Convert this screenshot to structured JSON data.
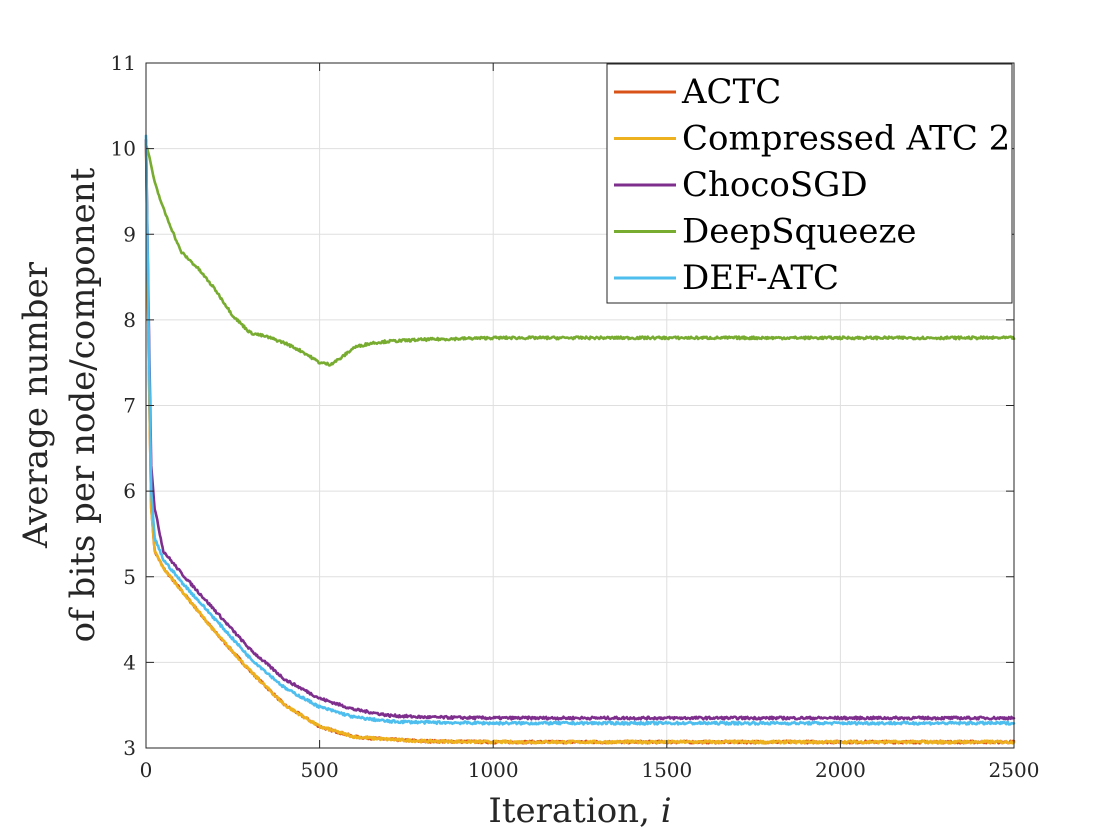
{
  "chart_data": {
    "type": "line",
    "title": "",
    "xlabel": "Iteration, ",
    "xlabel_var": "i",
    "ylabel_line1": "Average number",
    "ylabel_line2": "of bits per node/component",
    "xlim": [
      0,
      2500
    ],
    "ylim": [
      3,
      11
    ],
    "xticks": [
      0,
      500,
      1000,
      1500,
      2000,
      2500
    ],
    "yticks": [
      3,
      4,
      5,
      6,
      7,
      8,
      9,
      10,
      11
    ],
    "grid": true,
    "legend_position": "top-right",
    "series": [
      {
        "name": "ACTC",
        "color": "#D95319",
        "x": [
          0,
          8,
          15,
          25,
          50,
          100,
          200,
          300,
          400,
          500,
          600,
          700,
          800,
          1000,
          1500,
          2000,
          2500
        ],
        "y": [
          10.1,
          7.5,
          5.8,
          5.3,
          5.1,
          4.85,
          4.35,
          3.9,
          3.5,
          3.25,
          3.13,
          3.1,
          3.08,
          3.07,
          3.07,
          3.07,
          3.07
        ]
      },
      {
        "name": "Compressed ATC 2",
        "color": "#EDB120",
        "x": [
          0,
          8,
          15,
          25,
          50,
          100,
          200,
          300,
          400,
          500,
          600,
          700,
          800,
          1000,
          1500,
          2000,
          2500
        ],
        "y": [
          10.1,
          7.5,
          5.8,
          5.3,
          5.1,
          4.85,
          4.35,
          3.9,
          3.5,
          3.25,
          3.13,
          3.1,
          3.08,
          3.07,
          3.07,
          3.07,
          3.07
        ]
      },
      {
        "name": "ChocoSGD",
        "color": "#7E2F8E",
        "x": [
          0,
          8,
          15,
          25,
          50,
          100,
          200,
          300,
          400,
          500,
          600,
          700,
          800,
          1000,
          1500,
          2000,
          2500
        ],
        "y": [
          10.1,
          8.0,
          6.3,
          5.8,
          5.3,
          5.05,
          4.6,
          4.15,
          3.8,
          3.58,
          3.45,
          3.38,
          3.36,
          3.35,
          3.35,
          3.35,
          3.35
        ]
      },
      {
        "name": "DeepSqueeze",
        "color": "#77AC30",
        "x": [
          0,
          10,
          25,
          50,
          100,
          150,
          200,
          250,
          300,
          350,
          400,
          450,
          500,
          530,
          560,
          600,
          650,
          700,
          800,
          900,
          1000,
          1500,
          2000,
          2500
        ],
        "y": [
          10.05,
          9.9,
          9.6,
          9.3,
          8.8,
          8.6,
          8.35,
          8.05,
          7.85,
          7.8,
          7.73,
          7.63,
          7.5,
          7.48,
          7.55,
          7.68,
          7.73,
          7.75,
          7.77,
          7.78,
          7.79,
          7.79,
          7.79,
          7.79
        ]
      },
      {
        "name": "DEF-ATC",
        "color": "#4DBEEE",
        "x": [
          0,
          8,
          15,
          25,
          50,
          100,
          200,
          300,
          400,
          500,
          600,
          700,
          800,
          1000,
          1500,
          2000,
          2500
        ],
        "y": [
          10.15,
          7.8,
          6.0,
          5.45,
          5.2,
          4.95,
          4.5,
          4.05,
          3.7,
          3.48,
          3.36,
          3.31,
          3.3,
          3.29,
          3.29,
          3.29,
          3.29
        ]
      }
    ]
  }
}
